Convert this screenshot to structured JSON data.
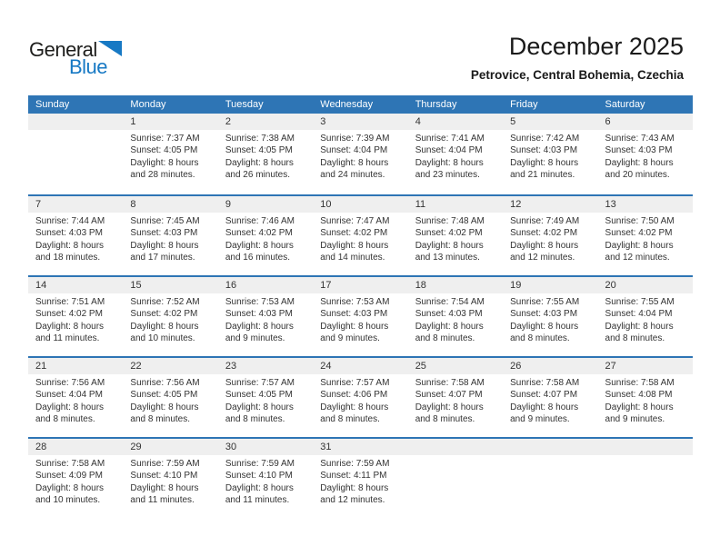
{
  "logo": {
    "general": "General",
    "blue": "Blue"
  },
  "header": {
    "title": "December 2025",
    "subtitle": "Petrovice, Central Bohemia, Czechia"
  },
  "colors": {
    "header_blue": "#2E75B5",
    "separator_blue": "#2E75B5",
    "band_gray": "#EFEFEF",
    "logo_blue": "#1779C4",
    "text_dark": "#333333"
  },
  "calendar": {
    "day_headers": [
      "Sunday",
      "Monday",
      "Tuesday",
      "Wednesday",
      "Thursday",
      "Friday",
      "Saturday"
    ],
    "weeks": [
      {
        "days": [
          {
            "date": "",
            "lines": []
          },
          {
            "date": "1",
            "lines": [
              "Sunrise: 7:37 AM",
              "Sunset: 4:05 PM",
              "Daylight: 8 hours",
              "and 28 minutes."
            ]
          },
          {
            "date": "2",
            "lines": [
              "Sunrise: 7:38 AM",
              "Sunset: 4:05 PM",
              "Daylight: 8 hours",
              "and 26 minutes."
            ]
          },
          {
            "date": "3",
            "lines": [
              "Sunrise: 7:39 AM",
              "Sunset: 4:04 PM",
              "Daylight: 8 hours",
              "and 24 minutes."
            ]
          },
          {
            "date": "4",
            "lines": [
              "Sunrise: 7:41 AM",
              "Sunset: 4:04 PM",
              "Daylight: 8 hours",
              "and 23 minutes."
            ]
          },
          {
            "date": "5",
            "lines": [
              "Sunrise: 7:42 AM",
              "Sunset: 4:03 PM",
              "Daylight: 8 hours",
              "and 21 minutes."
            ]
          },
          {
            "date": "6",
            "lines": [
              "Sunrise: 7:43 AM",
              "Sunset: 4:03 PM",
              "Daylight: 8 hours",
              "and 20 minutes."
            ]
          }
        ]
      },
      {
        "days": [
          {
            "date": "7",
            "lines": [
              "Sunrise: 7:44 AM",
              "Sunset: 4:03 PM",
              "Daylight: 8 hours",
              "and 18 minutes."
            ]
          },
          {
            "date": "8",
            "lines": [
              "Sunrise: 7:45 AM",
              "Sunset: 4:03 PM",
              "Daylight: 8 hours",
              "and 17 minutes."
            ]
          },
          {
            "date": "9",
            "lines": [
              "Sunrise: 7:46 AM",
              "Sunset: 4:02 PM",
              "Daylight: 8 hours",
              "and 16 minutes."
            ]
          },
          {
            "date": "10",
            "lines": [
              "Sunrise: 7:47 AM",
              "Sunset: 4:02 PM",
              "Daylight: 8 hours",
              "and 14 minutes."
            ]
          },
          {
            "date": "11",
            "lines": [
              "Sunrise: 7:48 AM",
              "Sunset: 4:02 PM",
              "Daylight: 8 hours",
              "and 13 minutes."
            ]
          },
          {
            "date": "12",
            "lines": [
              "Sunrise: 7:49 AM",
              "Sunset: 4:02 PM",
              "Daylight: 8 hours",
              "and 12 minutes."
            ]
          },
          {
            "date": "13",
            "lines": [
              "Sunrise: 7:50 AM",
              "Sunset: 4:02 PM",
              "Daylight: 8 hours",
              "and 12 minutes."
            ]
          }
        ]
      },
      {
        "days": [
          {
            "date": "14",
            "lines": [
              "Sunrise: 7:51 AM",
              "Sunset: 4:02 PM",
              "Daylight: 8 hours",
              "and 11 minutes."
            ]
          },
          {
            "date": "15",
            "lines": [
              "Sunrise: 7:52 AM",
              "Sunset: 4:02 PM",
              "Daylight: 8 hours",
              "and 10 minutes."
            ]
          },
          {
            "date": "16",
            "lines": [
              "Sunrise: 7:53 AM",
              "Sunset: 4:03 PM",
              "Daylight: 8 hours",
              "and 9 minutes."
            ]
          },
          {
            "date": "17",
            "lines": [
              "Sunrise: 7:53 AM",
              "Sunset: 4:03 PM",
              "Daylight: 8 hours",
              "and 9 minutes."
            ]
          },
          {
            "date": "18",
            "lines": [
              "Sunrise: 7:54 AM",
              "Sunset: 4:03 PM",
              "Daylight: 8 hours",
              "and 8 minutes."
            ]
          },
          {
            "date": "19",
            "lines": [
              "Sunrise: 7:55 AM",
              "Sunset: 4:03 PM",
              "Daylight: 8 hours",
              "and 8 minutes."
            ]
          },
          {
            "date": "20",
            "lines": [
              "Sunrise: 7:55 AM",
              "Sunset: 4:04 PM",
              "Daylight: 8 hours",
              "and 8 minutes."
            ]
          }
        ]
      },
      {
        "days": [
          {
            "date": "21",
            "lines": [
              "Sunrise: 7:56 AM",
              "Sunset: 4:04 PM",
              "Daylight: 8 hours",
              "and 8 minutes."
            ]
          },
          {
            "date": "22",
            "lines": [
              "Sunrise: 7:56 AM",
              "Sunset: 4:05 PM",
              "Daylight: 8 hours",
              "and 8 minutes."
            ]
          },
          {
            "date": "23",
            "lines": [
              "Sunrise: 7:57 AM",
              "Sunset: 4:05 PM",
              "Daylight: 8 hours",
              "and 8 minutes."
            ]
          },
          {
            "date": "24",
            "lines": [
              "Sunrise: 7:57 AM",
              "Sunset: 4:06 PM",
              "Daylight: 8 hours",
              "and 8 minutes."
            ]
          },
          {
            "date": "25",
            "lines": [
              "Sunrise: 7:58 AM",
              "Sunset: 4:07 PM",
              "Daylight: 8 hours",
              "and 8 minutes."
            ]
          },
          {
            "date": "26",
            "lines": [
              "Sunrise: 7:58 AM",
              "Sunset: 4:07 PM",
              "Daylight: 8 hours",
              "and 9 minutes."
            ]
          },
          {
            "date": "27",
            "lines": [
              "Sunrise: 7:58 AM",
              "Sunset: 4:08 PM",
              "Daylight: 8 hours",
              "and 9 minutes."
            ]
          }
        ]
      },
      {
        "days": [
          {
            "date": "28",
            "lines": [
              "Sunrise: 7:58 AM",
              "Sunset: 4:09 PM",
              "Daylight: 8 hours",
              "and 10 minutes."
            ]
          },
          {
            "date": "29",
            "lines": [
              "Sunrise: 7:59 AM",
              "Sunset: 4:10 PM",
              "Daylight: 8 hours",
              "and 11 minutes."
            ]
          },
          {
            "date": "30",
            "lines": [
              "Sunrise: 7:59 AM",
              "Sunset: 4:10 PM",
              "Daylight: 8 hours",
              "and 11 minutes."
            ]
          },
          {
            "date": "31",
            "lines": [
              "Sunrise: 7:59 AM",
              "Sunset: 4:11 PM",
              "Daylight: 8 hours",
              "and 12 minutes."
            ]
          },
          {
            "date": "",
            "lines": []
          },
          {
            "date": "",
            "lines": []
          },
          {
            "date": "",
            "lines": []
          }
        ]
      }
    ]
  }
}
